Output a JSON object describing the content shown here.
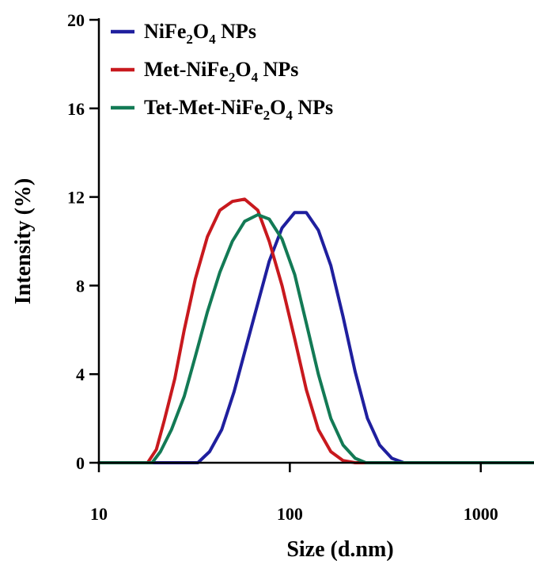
{
  "chart_data": {
    "type": "line",
    "xlabel": "Size (d.nm)",
    "ylabel": "Intensity (%)",
    "xscale": "log",
    "xlim": [
      10,
      1900
    ],
    "ylim": [
      0,
      20
    ],
    "xticks": [
      10,
      100,
      1000
    ],
    "xtick_labels": [
      "10",
      "100",
      "1000"
    ],
    "yticks": [
      0,
      4,
      8,
      12,
      16,
      20
    ],
    "ytick_labels": [
      "0",
      "4",
      "8",
      "12",
      "16",
      "20"
    ],
    "grid": false,
    "legend_position": "top-left",
    "series": [
      {
        "name_parts": [
          "NiFe",
          "2",
          "O",
          "4",
          " NPs"
        ],
        "color": "#1f1f9e",
        "x": [
          10,
          33,
          38,
          44,
          51,
          58,
          68,
          78,
          91,
          106,
          122,
          141,
          164,
          190,
          220,
          255,
          295,
          342,
          396,
          1900
        ],
        "y": [
          0,
          0,
          0.5,
          1.5,
          3.2,
          5.0,
          7.2,
          9.1,
          10.6,
          11.3,
          11.3,
          10.5,
          8.9,
          6.6,
          4.1,
          2.0,
          0.8,
          0.2,
          0,
          0
        ]
      },
      {
        "name_parts": [
          "Met-NiFe",
          "2",
          "O",
          "4",
          " NPs"
        ],
        "color": "#c8191e",
        "x": [
          10,
          18,
          20,
          22,
          25,
          28,
          32,
          37,
          43,
          50,
          58,
          68,
          78,
          91,
          106,
          122,
          141,
          164,
          190,
          220,
          1900
        ],
        "y": [
          0,
          0,
          0.6,
          1.9,
          3.8,
          6.0,
          8.3,
          10.2,
          11.4,
          11.8,
          11.9,
          11.4,
          10.0,
          8.0,
          5.6,
          3.3,
          1.5,
          0.5,
          0.1,
          0,
          0
        ]
      },
      {
        "name_parts": [
          "Tet-Met-NiFe",
          "2",
          "O",
          "4",
          " NPs"
        ],
        "color": "#137a55",
        "x": [
          10,
          19,
          21,
          24,
          28,
          32,
          37,
          43,
          50,
          58,
          68,
          78,
          91,
          106,
          122,
          141,
          164,
          190,
          220,
          250,
          1900
        ],
        "y": [
          0,
          0,
          0.5,
          1.5,
          3.0,
          4.8,
          6.8,
          8.6,
          10.0,
          10.9,
          11.2,
          11.0,
          10.1,
          8.5,
          6.3,
          4.0,
          2.0,
          0.8,
          0.2,
          0,
          0
        ]
      }
    ]
  }
}
